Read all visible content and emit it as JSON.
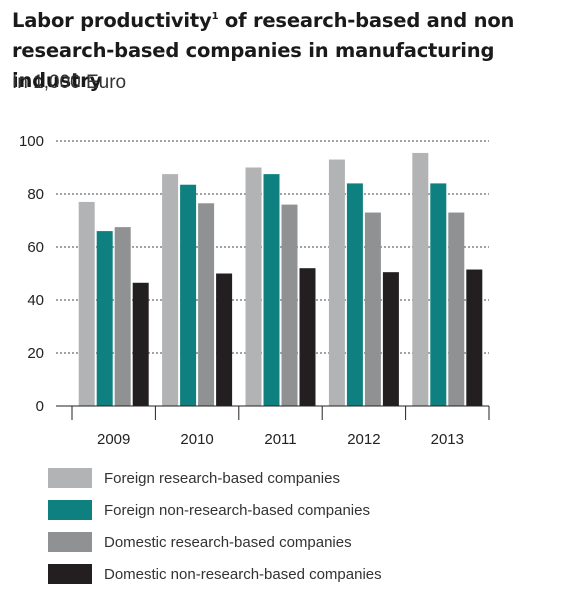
{
  "header": {
    "title_before": "Labor productivity",
    "title_footnote": "1",
    "title_after": " of research-based and non research-based companies in manufacturing industry",
    "subtitle": "In 1,000 Euro"
  },
  "chart_data": {
    "type": "bar",
    "title": "Labor productivity1 of research-based and non research-based companies in manufacturing industry",
    "subtitle": "In 1,000 Euro",
    "xlabel": "",
    "ylabel": "",
    "categories": [
      "2009",
      "2010",
      "2011",
      "2012",
      "2013"
    ],
    "ylim": [
      0,
      100
    ],
    "yticks": [
      0,
      20,
      40,
      60,
      80,
      100
    ],
    "grid": "horizontal-dotted",
    "legend_position": "bottom",
    "series": [
      {
        "name": "Foreign research-based companies",
        "color": "#b2b3b5",
        "values": [
          77,
          87.5,
          90,
          93,
          95.5
        ]
      },
      {
        "name": "Foreign non-research-based companies",
        "color": "#0f8080",
        "values": [
          66,
          83.5,
          87.5,
          84,
          84
        ]
      },
      {
        "name": "Domestic research-based companies",
        "color": "#909193",
        "values": [
          67.5,
          76.5,
          76,
          73,
          73
        ]
      },
      {
        "name": "Domestic non-research-based companies",
        "color": "#231f20",
        "values": [
          46.5,
          50,
          52,
          50.5,
          51.5
        ]
      }
    ]
  }
}
